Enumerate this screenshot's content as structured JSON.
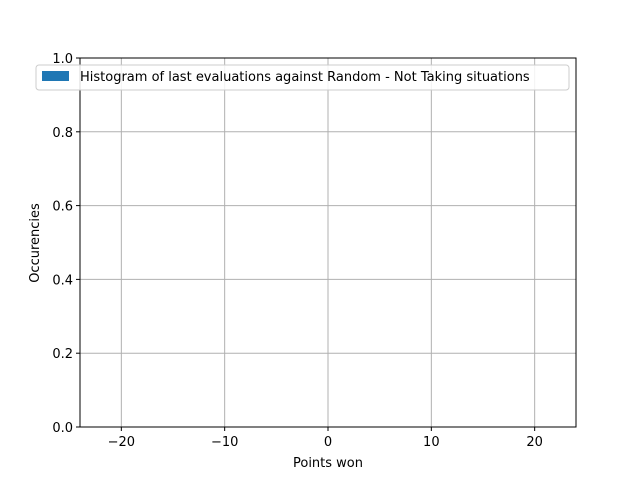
{
  "chart_data": {
    "type": "bar",
    "title": "",
    "xlabel": "Points won",
    "ylabel": "Occurencies",
    "xlim": [
      -24,
      24
    ],
    "ylim": [
      0,
      1.0
    ],
    "x_ticks": [
      -20,
      -10,
      0,
      10,
      20
    ],
    "x_tick_labels": [
      "−20",
      "−10",
      "0",
      "10",
      "20"
    ],
    "y_ticks": [
      0.0,
      0.2,
      0.4,
      0.6,
      0.8,
      1.0
    ],
    "y_tick_labels": [
      "0.0",
      "0.2",
      "0.4",
      "0.6",
      "0.8",
      "1.0"
    ],
    "grid": true,
    "legend_position": "top",
    "series": [
      {
        "name": "Histogram of last evaluations against Random - Not Taking situations",
        "color": "#1f77b4",
        "bins": [],
        "values": []
      }
    ]
  }
}
